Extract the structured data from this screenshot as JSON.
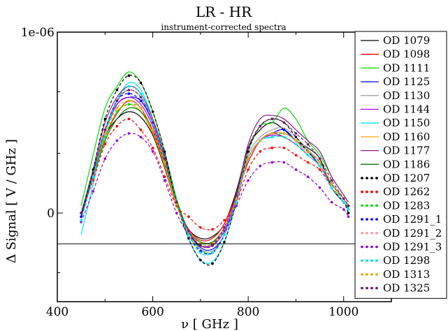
{
  "chart_data": {
    "type": "line",
    "title": "LR - HR",
    "subtitle": "instrument-corrected spectra",
    "xlabel": "ν  [ GHz ]",
    "ylabel": "Δ Signal [ V / GHz ]",
    "xlim": [
      400,
      1100
    ],
    "ylim": [
      -4.9e-07,
      1e-06
    ],
    "x_ticks": [
      {
        "value": 400,
        "label": "400"
      },
      {
        "value": 600,
        "label": "600"
      },
      {
        "value": 800,
        "label": "800"
      },
      {
        "value": 1000,
        "label": "1000"
      }
    ],
    "y_ticks": [
      {
        "value": 0,
        "label": "0"
      },
      {
        "value": 1e-06,
        "label": "1e-06"
      }
    ],
    "y_minor_ticks": [
      -3.3e-07,
      6.7e-07,
      3.3e-07
    ],
    "reference_line_y": -1.7e-07,
    "legend_placement": "right",
    "grid": false,
    "x": [
      450,
      475,
      500,
      525,
      550,
      575,
      600,
      625,
      650,
      675,
      700,
      725,
      750,
      775,
      800,
      825,
      850,
      875,
      900,
      925,
      950,
      975,
      1000,
      1010
    ],
    "series": [
      {
        "name": "OD 1079",
        "color": "#000000",
        "dashed": false,
        "marker": false,
        "values": [
          -0.02,
          0.2,
          0.42,
          0.52,
          0.56,
          0.53,
          0.43,
          0.25,
          0.04,
          -0.09,
          -0.14,
          -0.13,
          -0.06,
          0.12,
          0.36,
          0.46,
          0.5,
          0.46,
          0.4,
          0.36,
          0.3,
          0.14,
          0.06,
          0.03
        ]
      },
      {
        "name": "OD 1098",
        "color": "#ff0000",
        "dashed": false,
        "marker": false,
        "values": [
          0.0,
          0.2,
          0.42,
          0.55,
          0.62,
          0.58,
          0.45,
          0.27,
          0.05,
          -0.09,
          -0.15,
          -0.14,
          -0.06,
          0.1,
          0.28,
          0.4,
          0.44,
          0.42,
          0.38,
          0.32,
          0.26,
          0.16,
          0.08,
          0.04
        ]
      },
      {
        "name": "OD 1111",
        "color": "#00dd00",
        "dashed": false,
        "marker": false,
        "values": [
          0.04,
          0.32,
          0.58,
          0.7,
          0.78,
          0.72,
          0.56,
          0.34,
          0.08,
          -0.1,
          -0.2,
          -0.22,
          -0.12,
          0.08,
          0.34,
          0.48,
          0.5,
          0.58,
          0.52,
          0.4,
          0.32,
          0.2,
          0.1,
          0.06
        ]
      },
      {
        "name": "OD 1125",
        "color": "#0000ff",
        "dashed": false,
        "marker": false,
        "values": [
          -0.02,
          0.22,
          0.46,
          0.6,
          0.64,
          0.62,
          0.5,
          0.3,
          0.06,
          -0.1,
          -0.19,
          -0.2,
          -0.12,
          0.08,
          0.3,
          0.4,
          0.44,
          0.46,
          0.4,
          0.34,
          0.26,
          0.16,
          0.08,
          0.04
        ]
      },
      {
        "name": "OD 1130",
        "color": "#a0a0a0",
        "dashed": false,
        "marker": false,
        "values": [
          0.0,
          0.22,
          0.46,
          0.62,
          0.68,
          0.64,
          0.5,
          0.3,
          0.06,
          -0.12,
          -0.2,
          -0.21,
          -0.12,
          0.08,
          0.32,
          0.42,
          0.46,
          0.47,
          0.42,
          0.35,
          0.28,
          0.16,
          0.08,
          0.04
        ]
      },
      {
        "name": "OD 1144",
        "color": "#b000ff",
        "dashed": false,
        "marker": false,
        "values": [
          0.0,
          0.2,
          0.44,
          0.6,
          0.64,
          0.6,
          0.48,
          0.28,
          0.06,
          -0.1,
          -0.18,
          -0.18,
          -0.1,
          0.08,
          0.3,
          0.4,
          0.43,
          0.42,
          0.38,
          0.32,
          0.26,
          0.16,
          0.08,
          0.04
        ]
      },
      {
        "name": "OD 1150",
        "color": "#00e5ee",
        "dashed": false,
        "marker": false,
        "values": [
          -0.12,
          0.16,
          0.44,
          0.62,
          0.72,
          0.68,
          0.52,
          0.3,
          0.06,
          -0.14,
          -0.26,
          -0.27,
          -0.16,
          0.06,
          0.3,
          0.4,
          0.42,
          0.44,
          0.4,
          0.32,
          0.26,
          0.14,
          0.06,
          0.02
        ]
      },
      {
        "name": "OD 1160",
        "color": "#ffa500",
        "dashed": false,
        "marker": false,
        "values": [
          0.0,
          0.2,
          0.42,
          0.56,
          0.6,
          0.56,
          0.44,
          0.26,
          0.04,
          -0.1,
          -0.16,
          -0.16,
          -0.08,
          0.08,
          0.3,
          0.4,
          0.44,
          0.44,
          0.4,
          0.34,
          0.28,
          0.16,
          0.08,
          0.04
        ]
      },
      {
        "name": "OD 1177",
        "color": "#8b1a89",
        "dashed": false,
        "marker": false,
        "values": [
          0.0,
          0.24,
          0.5,
          0.64,
          0.7,
          0.66,
          0.52,
          0.32,
          0.06,
          -0.1,
          -0.18,
          -0.17,
          -0.08,
          0.1,
          0.38,
          0.52,
          0.54,
          0.52,
          0.46,
          0.4,
          0.34,
          0.2,
          0.1,
          0.06
        ]
      },
      {
        "name": "OD 1186",
        "color": "#007a00",
        "dashed": false,
        "marker": false,
        "values": [
          0.0,
          0.2,
          0.4,
          0.52,
          0.58,
          0.56,
          0.46,
          0.28,
          0.06,
          -0.1,
          -0.16,
          -0.16,
          -0.08,
          0.08,
          0.3,
          0.4,
          0.44,
          0.44,
          0.4,
          0.34,
          0.28,
          0.16,
          0.08,
          0.04
        ]
      },
      {
        "name": "OD 1207",
        "color": "#000000",
        "dashed": true,
        "marker": true,
        "values": [
          -0.02,
          0.24,
          0.52,
          0.68,
          0.76,
          0.72,
          0.56,
          0.34,
          0.06,
          -0.14,
          -0.26,
          -0.28,
          -0.16,
          0.06,
          0.34,
          0.48,
          0.52,
          0.5,
          0.42,
          0.34,
          0.26,
          0.14,
          0.06,
          0.0
        ]
      },
      {
        "name": "OD 1262",
        "color": "#ff0000",
        "dashed": true,
        "marker": true,
        "values": [
          0.0,
          0.18,
          0.38,
          0.48,
          0.52,
          0.46,
          0.36,
          0.2,
          0.04,
          -0.02,
          -0.08,
          -0.09,
          -0.04,
          0.06,
          0.24,
          0.34,
          0.36,
          0.36,
          0.32,
          0.28,
          0.24,
          0.14,
          0.08,
          0.04
        ]
      },
      {
        "name": "OD 1283",
        "color": "#00dd00",
        "dashed": true,
        "marker": true,
        "values": [
          0.0,
          0.2,
          0.42,
          0.56,
          0.6,
          0.58,
          0.46,
          0.28,
          0.05,
          -0.1,
          -0.17,
          -0.17,
          -0.08,
          0.08,
          0.3,
          0.4,
          0.42,
          0.42,
          0.38,
          0.32,
          0.26,
          0.14,
          0.08,
          0.04
        ]
      },
      {
        "name": "OD 1291_1",
        "color": "#0000ff",
        "dashed": true,
        "marker": true,
        "values": [
          -0.02,
          0.22,
          0.46,
          0.62,
          0.66,
          0.62,
          0.5,
          0.3,
          0.06,
          -0.12,
          -0.21,
          -0.22,
          -0.12,
          0.06,
          0.3,
          0.4,
          0.44,
          0.46,
          0.4,
          0.34,
          0.26,
          0.14,
          0.06,
          0.02
        ]
      },
      {
        "name": "OD 1291_2",
        "color": "#ff9aa8",
        "dashed": true,
        "marker": true,
        "values": [
          0.0,
          0.22,
          0.44,
          0.58,
          0.62,
          0.58,
          0.46,
          0.28,
          0.05,
          -0.1,
          -0.18,
          -0.18,
          -0.08,
          0.08,
          0.3,
          0.4,
          0.44,
          0.44,
          0.4,
          0.32,
          0.26,
          0.14,
          0.08,
          0.04
        ]
      },
      {
        "name": "OD 1291_3",
        "color": "#9400d3",
        "dashed": true,
        "marker": true,
        "values": [
          -0.05,
          0.12,
          0.3,
          0.4,
          0.44,
          0.42,
          0.34,
          0.18,
          0.0,
          -0.12,
          -0.18,
          -0.18,
          -0.1,
          0.04,
          0.18,
          0.26,
          0.28,
          0.28,
          0.24,
          0.2,
          0.14,
          0.06,
          0.02,
          -0.02
        ]
      },
      {
        "name": "OD 1298",
        "color": "#00e5ee",
        "dashed": true,
        "marker": true,
        "values": [
          -0.04,
          0.2,
          0.46,
          0.62,
          0.7,
          0.66,
          0.5,
          0.3,
          0.06,
          -0.12,
          -0.22,
          -0.22,
          -0.12,
          0.06,
          0.3,
          0.4,
          0.42,
          0.42,
          0.38,
          0.32,
          0.26,
          0.14,
          0.06,
          0.02
        ]
      },
      {
        "name": "OD 1313",
        "color": "#e6a800",
        "dashed": true,
        "marker": true,
        "values": [
          0.0,
          0.22,
          0.44,
          0.58,
          0.62,
          0.58,
          0.46,
          0.28,
          0.05,
          -0.1,
          -0.17,
          -0.17,
          -0.08,
          0.08,
          0.3,
          0.4,
          0.44,
          0.44,
          0.4,
          0.34,
          0.28,
          0.16,
          0.08,
          0.04
        ]
      },
      {
        "name": "OD 1325",
        "color": "#6b1a6b",
        "dashed": true,
        "marker": true,
        "values": [
          0.0,
          0.22,
          0.46,
          0.62,
          0.68,
          0.64,
          0.5,
          0.3,
          0.06,
          -0.1,
          -0.18,
          -0.18,
          -0.08,
          0.1,
          0.36,
          0.48,
          0.52,
          0.5,
          0.44,
          0.38,
          0.3,
          0.18,
          0.08,
          0.04
        ]
      }
    ],
    "value_scale": 1e-06
  }
}
